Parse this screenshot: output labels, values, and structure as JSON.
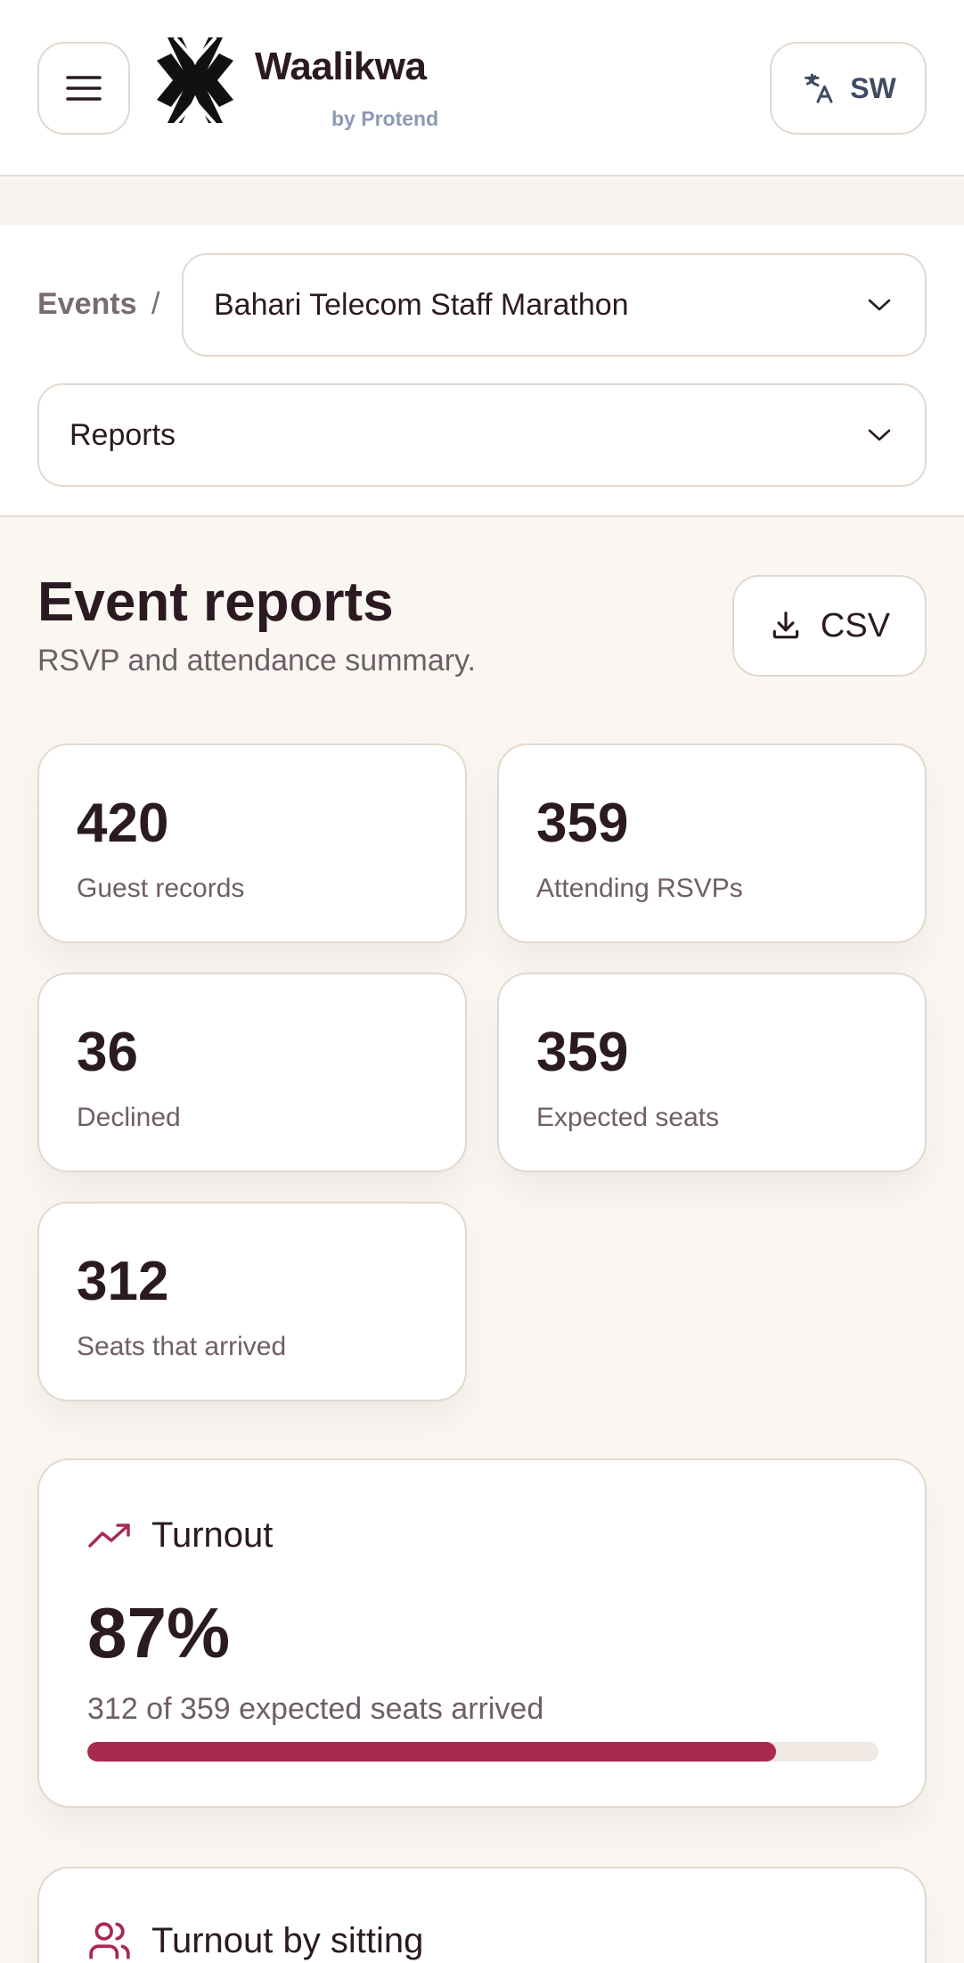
{
  "header": {
    "brand_name": "Waalikwa",
    "brand_sub": "by Protend",
    "language_code": "SW"
  },
  "nav": {
    "breadcrumb_events": "Events",
    "breadcrumb_separator": "/",
    "selected_event": "Bahari Telecom Staff Marathon",
    "selected_view": "Reports"
  },
  "main": {
    "title": "Event reports",
    "subtitle": "RSVP and attendance summary.",
    "csv_label": "CSV",
    "stats": [
      {
        "value": "420",
        "label": "Guest records"
      },
      {
        "value": "359",
        "label": "Attending RSVPs"
      },
      {
        "value": "36",
        "label": "Declined"
      },
      {
        "value": "359",
        "label": "Expected seats"
      },
      {
        "value": "312",
        "label": "Seats that arrived"
      }
    ],
    "turnout": {
      "title": "Turnout",
      "percent_text": "87%",
      "description": "312 of 359 expected seats arrived",
      "fraction": 0.87
    },
    "sitting": {
      "title": "Turnout by sitting"
    }
  },
  "colors": {
    "accent": "#a92a4f",
    "text": "#2b1a22",
    "muted": "#6e5e66",
    "border": "#e3d8cf",
    "background": "#faf7f3"
  },
  "icons": {
    "menu": "menu-icon",
    "logo": "waalikwa-logo",
    "language": "translate-icon",
    "chevron": "chevron-down-icon",
    "download": "download-icon",
    "turnout": "trending-up-icon",
    "sitting": "users-icon"
  }
}
